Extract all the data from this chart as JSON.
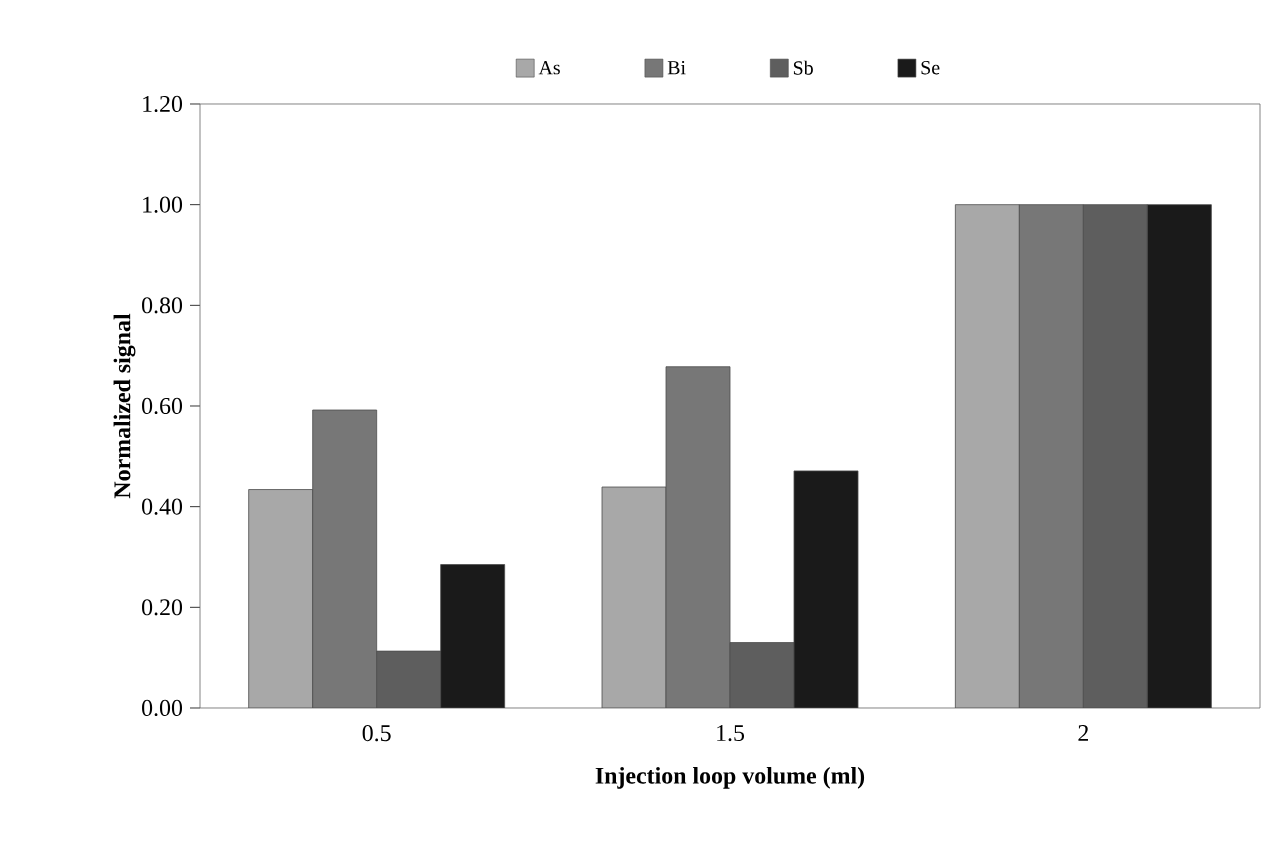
{
  "chart_data": {
    "type": "bar",
    "xlabel": "Injection loop volume (ml)",
    "ylabel": "Normalized signal",
    "categories": [
      "0.5",
      "1.5",
      "2"
    ],
    "series": [
      {
        "name": "As",
        "color": "#a8a8a8",
        "values": [
          0.434,
          0.439,
          1.0
        ]
      },
      {
        "name": "Bi",
        "color": "#777777",
        "values": [
          0.592,
          0.678,
          1.0
        ]
      },
      {
        "name": "Sb",
        "color": "#5e5e5e",
        "values": [
          0.113,
          0.13,
          1.0
        ]
      },
      {
        "name": "Se",
        "color": "#1a1a1a",
        "values": [
          0.285,
          0.471,
          1.0
        ]
      }
    ],
    "ylim": [
      0,
      1.2
    ],
    "yticks": [
      {
        "value": 0,
        "label": "0.00"
      },
      {
        "value": 0.2,
        "label": "0.20"
      },
      {
        "value": 0.4,
        "label": "0.40"
      },
      {
        "value": 0.6,
        "label": "0.60"
      },
      {
        "value": 0.8,
        "label": "0.80"
      },
      {
        "value": 1.0,
        "label": "1.00"
      },
      {
        "value": 1.2,
        "label": "1.20"
      }
    ],
    "grid": false,
    "legend": "top"
  }
}
